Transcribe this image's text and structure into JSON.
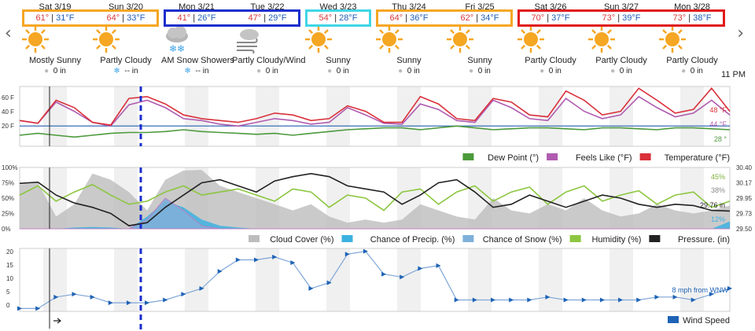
{
  "nav": {
    "prev": "‹",
    "next": "›"
  },
  "days": [
    {
      "name": "Sat 3/19",
      "hi": "61°",
      "lo": "31°F",
      "cond": "Mostly Sunny",
      "icon": "sun-icon",
      "precip": "0 in",
      "snow": false
    },
    {
      "name": "Sun 3/20",
      "hi": "64°",
      "lo": "33°F",
      "cond": "Partly Cloudy",
      "icon": "sun-icon",
      "precip": "-- in",
      "snow": true
    },
    {
      "name": "Mon 3/21",
      "hi": "41°",
      "lo": "26°F",
      "cond": "AM Snow Showers",
      "icon": "snow-cloud-icon",
      "precip": "-- in",
      "snow": true
    },
    {
      "name": "Tue 3/22",
      "hi": "47°",
      "lo": "29°F",
      "cond": "Partly Cloudy/Wind",
      "icon": "wind-cloud-icon",
      "precip": "0 in",
      "snow": false
    },
    {
      "name": "Wed 3/23",
      "hi": "54°",
      "lo": "28°F",
      "cond": "Sunny",
      "icon": "sun-icon",
      "precip": "0 in",
      "snow": false
    },
    {
      "name": "Thu 3/24",
      "hi": "64°",
      "lo": "36°F",
      "cond": "Sunny",
      "icon": "sun-icon",
      "precip": "0 in",
      "snow": false
    },
    {
      "name": "Fri 3/25",
      "hi": "62°",
      "lo": "34°F",
      "cond": "Sunny",
      "icon": "sun-icon",
      "precip": "0 in",
      "snow": false
    },
    {
      "name": "Sat 3/26",
      "hi": "70°",
      "lo": "37°F",
      "cond": "Partly Cloudy",
      "icon": "sun-icon",
      "precip": "0 in",
      "snow": false
    },
    {
      "name": "Sun 3/27",
      "hi": "73°",
      "lo": "39°F",
      "cond": "Partly Cloudy",
      "icon": "sun-icon",
      "precip": "0 in",
      "snow": false
    },
    {
      "name": "Mon 3/28",
      "hi": "73°",
      "lo": "38°F",
      "cond": "Partly Cloudy",
      "icon": "sun-icon",
      "precip": "0 in",
      "snow": false
    }
  ],
  "highlights": [
    {
      "from": 0,
      "to": 1,
      "color": "#f5a623"
    },
    {
      "from": 2,
      "to": 3,
      "color": "#1a2ecc"
    },
    {
      "from": 4,
      "to": 4,
      "color": "#3fd6e6"
    },
    {
      "from": 5,
      "to": 6,
      "color": "#f5a623"
    },
    {
      "from": 7,
      "to": 9,
      "color": "#e01b1b"
    }
  ],
  "time_label": "11 PM",
  "colors": {
    "temp": "#d9303a",
    "feels": "#b05bb0",
    "dew": "#4c9a3c",
    "cloud": "#bdbdbd",
    "precip": "#3cb2e0",
    "snow": "#7fb0d9",
    "humidity": "#8cc63f",
    "pressure": "#222222",
    "wind": "#1e63b5",
    "marker": "#1a2ecc"
  },
  "chart_data": [
    {
      "type": "line",
      "title": "",
      "y_ticks": [
        "60 F",
        "40 F",
        "20 F"
      ],
      "ylim": [
        10,
        75
      ],
      "series": [
        {
          "name": "Dew Point (°)",
          "values": [
            22,
            24,
            22,
            20,
            22,
            24,
            25,
            25,
            26,
            28,
            26,
            25,
            24,
            23,
            24,
            22,
            24,
            26,
            28,
            29,
            30,
            30,
            28,
            30,
            32,
            30,
            28,
            29,
            30,
            30,
            29,
            28,
            30,
            30,
            29,
            28,
            30,
            30,
            29,
            28
          ],
          "end_label": "28 °"
        },
        {
          "name": "Feels Like (°F)",
          "values": [
            38,
            35,
            58,
            48,
            36,
            32,
            55,
            60,
            52,
            40,
            38,
            34,
            32,
            36,
            40,
            38,
            34,
            36,
            52,
            44,
            35,
            34,
            56,
            50,
            38,
            36,
            60,
            52,
            40,
            38,
            62,
            48,
            40,
            44,
            64,
            52,
            42,
            46,
            60,
            44
          ],
          "end_label": "44 °F"
        },
        {
          "name": "Temperature (°F)",
          "values": [
            38,
            35,
            60,
            52,
            36,
            33,
            62,
            64,
            56,
            44,
            40,
            38,
            36,
            40,
            46,
            44,
            38,
            40,
            54,
            48,
            36,
            36,
            64,
            56,
            40,
            38,
            62,
            58,
            44,
            42,
            70,
            60,
            44,
            48,
            73,
            60,
            46,
            50,
            73,
            48
          ],
          "end_label": "48 °F"
        }
      ],
      "reference_line": {
        "value": 32
      }
    },
    {
      "type": "area",
      "y_ticks": [
        "100%",
        "75%",
        "50%",
        "25%",
        "0%"
      ],
      "y2_ticks": [
        "30.40",
        "30.17",
        "29.95",
        "29.73",
        "29.50"
      ],
      "ylim": [
        0,
        100
      ],
      "series": [
        {
          "name": "Cloud Cover (%)",
          "values": [
            72,
            75,
            20,
            40,
            90,
            80,
            60,
            30,
            80,
            95,
            96,
            70,
            60,
            50,
            40,
            30,
            40,
            20,
            10,
            15,
            10,
            15,
            40,
            30,
            20,
            15,
            50,
            30,
            25,
            40,
            30,
            50,
            30,
            20,
            25,
            40,
            30,
            25,
            30,
            38
          ],
          "end_label": "38%"
        },
        {
          "name": "Chance of Precip. (%)",
          "values": [
            0,
            0,
            0,
            2,
            3,
            2,
            0,
            20,
            45,
            35,
            15,
            5,
            2,
            0,
            0,
            0,
            0,
            0,
            0,
            0,
            0,
            0,
            0,
            0,
            0,
            0,
            0,
            0,
            0,
            0,
            0,
            0,
            0,
            0,
            0,
            0,
            0,
            0,
            0,
            12
          ],
          "end_label": "12%"
        },
        {
          "name": "Chance of Snow (%)",
          "values": [
            0,
            0,
            0,
            0,
            0,
            0,
            0,
            15,
            50,
            30,
            5,
            0,
            0,
            0,
            0,
            0,
            0,
            0,
            0,
            0,
            0,
            0,
            0,
            0,
            0,
            0,
            0,
            0,
            0,
            0,
            0,
            0,
            0,
            0,
            0,
            0,
            0,
            0,
            0,
            0
          ]
        },
        {
          "name": "Humidity (%)",
          "values": [
            55,
            70,
            45,
            60,
            72,
            55,
            40,
            45,
            60,
            70,
            55,
            60,
            65,
            55,
            45,
            65,
            60,
            35,
            55,
            50,
            30,
            60,
            65,
            40,
            60,
            70,
            45,
            60,
            68,
            40,
            60,
            70,
            45,
            55,
            62,
            40,
            55,
            60,
            35,
            45
          ],
          "end_label": "45%"
        },
        {
          "name": "Pressure. (in)",
          "values": [
            74,
            76,
            55,
            42,
            35,
            25,
            5,
            10,
            35,
            55,
            75,
            80,
            70,
            60,
            78,
            85,
            90,
            85,
            70,
            65,
            60,
            40,
            55,
            75,
            80,
            60,
            35,
            40,
            55,
            45,
            35,
            45,
            55,
            50,
            40,
            35,
            40,
            38,
            30,
            29
          ],
          "end_label": "29.76 in"
        }
      ]
    },
    {
      "type": "line",
      "y_ticks": [
        "20",
        "15",
        "10",
        "5",
        "0"
      ],
      "ylim": [
        0,
        22
      ],
      "series": [
        {
          "name": "Wind Speed",
          "values": [
            1,
            1,
            5,
            6,
            5,
            3,
            3,
            3,
            4,
            6,
            8,
            14,
            18,
            18,
            19,
            17,
            8,
            10,
            20,
            21,
            13,
            12,
            15,
            16,
            4,
            4,
            4,
            4,
            4,
            5,
            4,
            4,
            4,
            4,
            4,
            5,
            5,
            4,
            6,
            8
          ],
          "end_label": "8 mph from WNW"
        }
      ]
    }
  ]
}
